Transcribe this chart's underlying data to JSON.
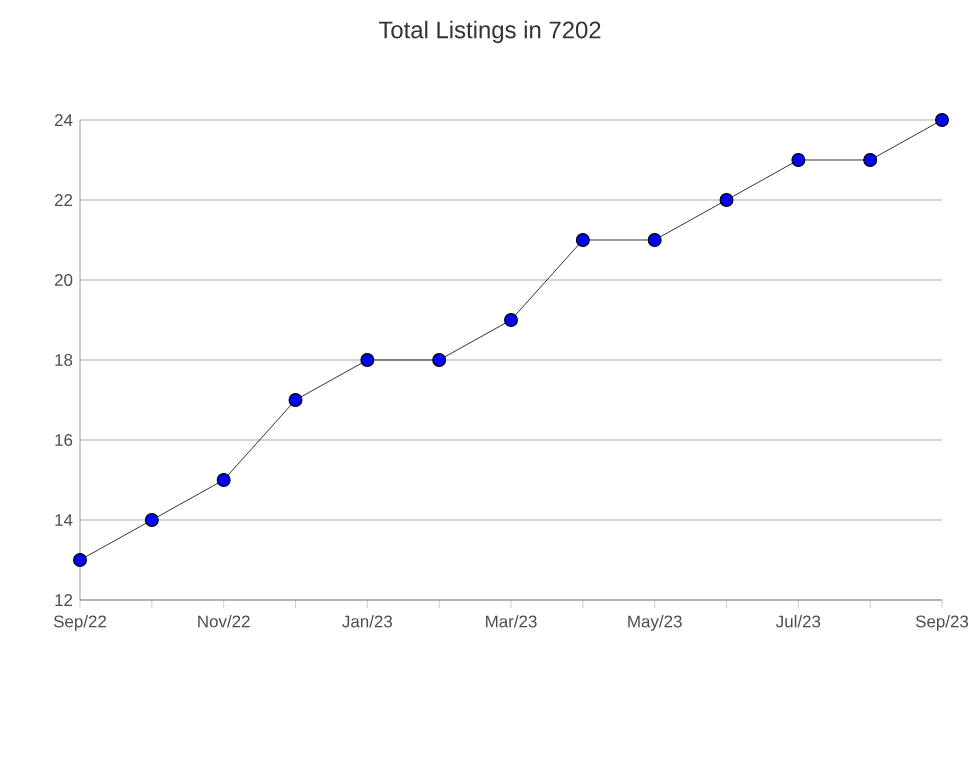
{
  "chart_data": {
    "type": "line",
    "title": "Total Listings in 7202",
    "categories": [
      "Sep/22",
      null,
      "Nov/22",
      null,
      "Jan/23",
      null,
      "Mar/23",
      null,
      "May/23",
      null,
      "Jul/23",
      null,
      "Sep/23"
    ],
    "series": [
      {
        "color": "#0000ff",
        "values": [
          13,
          14,
          15,
          17,
          18,
          18,
          19,
          21,
          21,
          22,
          23,
          23,
          24
        ]
      }
    ],
    "ylim": [
      12,
      24
    ],
    "yticks": [
      12,
      14,
      16,
      18,
      20,
      22,
      24
    ],
    "grid": "y",
    "marker": "circle",
    "line_style": "solid"
  }
}
